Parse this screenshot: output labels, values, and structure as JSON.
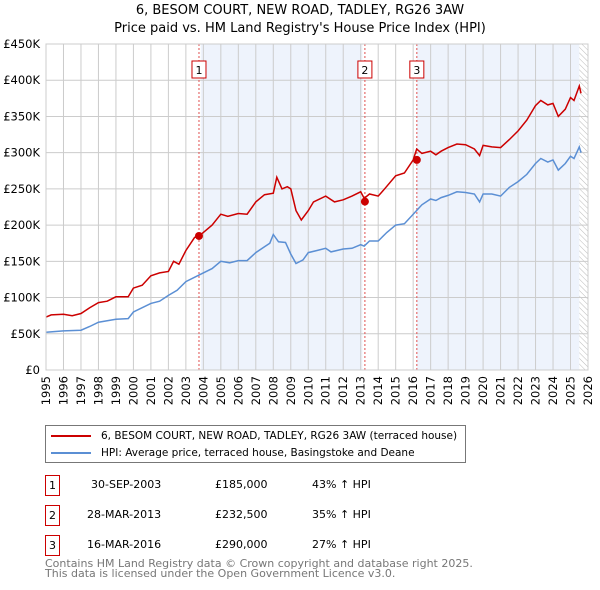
{
  "title": "6, BESOM COURT, NEW ROAD, TADLEY, RG26 3AW",
  "subtitle": "Price paid vs. HM Land Registry's House Price Index (HPI)",
  "chart_data": {
    "type": "line",
    "xlim": [
      1995,
      2026
    ],
    "ylim": [
      0,
      450000
    ],
    "x_ticks": [
      "1995",
      "1996",
      "1997",
      "1998",
      "1999",
      "2000",
      "2001",
      "2002",
      "2003",
      "2004",
      "2005",
      "2006",
      "2007",
      "2008",
      "2009",
      "2010",
      "2011",
      "2012",
      "2013",
      "2014",
      "2015",
      "2016",
      "2017",
      "2018",
      "2019",
      "2020",
      "2021",
      "2022",
      "2023",
      "2024",
      "2025",
      "2026"
    ],
    "y_ticks": [
      {
        "v": 0,
        "l": "£0"
      },
      {
        "v": 50000,
        "l": "£50K"
      },
      {
        "v": 100000,
        "l": "£100K"
      },
      {
        "v": 150000,
        "l": "£150K"
      },
      {
        "v": 200000,
        "l": "£200K"
      },
      {
        "v": 250000,
        "l": "£250K"
      },
      {
        "v": 300000,
        "l": "£300K"
      },
      {
        "v": 350000,
        "l": "£350K"
      },
      {
        "v": 400000,
        "l": "£400K"
      },
      {
        "v": 450000,
        "l": "£450K"
      }
    ],
    "series": [
      {
        "name": "6, BESOM COURT, NEW ROAD, TADLEY, RG26 3AW (terraced house)",
        "color": "#cc0000",
        "x": [
          1995,
          1995.3,
          1996,
          1996.5,
          1997,
          1997.5,
          1998,
          1998.5,
          1999,
          1999.7,
          2000,
          2000.5,
          2001,
          2001.5,
          2002,
          2002.3,
          2002.6,
          2003,
          2003.5,
          2003.75,
          2004,
          2004.5,
          2005,
          2005.4,
          2006,
          2006.5,
          2007,
          2007.5,
          2008,
          2008.2,
          2008.5,
          2008.8,
          2009,
          2009.3,
          2009.6,
          2010,
          2010.3,
          2011,
          2011.5,
          2012,
          2012.5,
          2013,
          2013.2,
          2013.5,
          2014,
          2014.3,
          2015,
          2015.5,
          2016,
          2016.2,
          2016.5,
          2017,
          2017.3,
          2017.6,
          2018,
          2018.5,
          2019,
          2019.5,
          2019.8,
          2020,
          2020.5,
          2021,
          2021.5,
          2022,
          2022.5,
          2023,
          2023.3,
          2023.7,
          2024,
          2024.3,
          2024.7,
          2025,
          2025.2,
          2025.5,
          2025.6
        ],
        "y": [
          73,
          76,
          77,
          75,
          78,
          86,
          93,
          95,
          101,
          101,
          113,
          117,
          130,
          134,
          136,
          150,
          146,
          165,
          183,
          185,
          190,
          200,
          215,
          212,
          216,
          215,
          232,
          242,
          244,
          266,
          250,
          253,
          250,
          220,
          207,
          220,
          232,
          240,
          232,
          235,
          240,
          246,
          237,
          243,
          240,
          248,
          268,
          272,
          290,
          305,
          299,
          302,
          297,
          302,
          307,
          312,
          311,
          305,
          296,
          310,
          308,
          307,
          318,
          330,
          345,
          365,
          372,
          366,
          368,
          350,
          360,
          376,
          372,
          392,
          382
        ]
      },
      {
        "name": "HPI: Average price, terraced house, Basingstoke and Deane",
        "color": "#5b8fd4",
        "x": [
          1995,
          1996,
          1997,
          1997.5,
          1998,
          1999,
          1999.7,
          2000,
          2001,
          2001.5,
          2002,
          2002.5,
          2003,
          2003.75,
          2004.5,
          2005,
          2005.5,
          2006,
          2006.5,
          2007,
          2007.5,
          2007.8,
          2008,
          2008.3,
          2008.7,
          2009,
          2009.3,
          2009.7,
          2010,
          2010.5,
          2011,
          2011.3,
          2012,
          2012.5,
          2013,
          2013.2,
          2013.5,
          2014,
          2014.5,
          2015,
          2015.5,
          2016,
          2016.5,
          2017,
          2017.3,
          2017.6,
          2018,
          2018.5,
          2019,
          2019.5,
          2019.8,
          2020,
          2020.5,
          2021,
          2021.5,
          2022,
          2022.5,
          2023,
          2023.3,
          2023.7,
          2024,
          2024.3,
          2024.7,
          2025,
          2025.2,
          2025.5,
          2025.6
        ],
        "y": [
          52,
          54,
          55,
          60,
          66,
          70,
          71,
          80,
          92,
          95,
          103,
          110,
          122,
          131,
          140,
          150,
          148,
          151,
          151,
          162,
          170,
          175,
          187,
          177,
          176,
          160,
          147,
          152,
          162,
          165,
          168,
          163,
          167,
          168,
          173,
          171,
          178,
          178,
          190,
          200,
          202,
          215,
          228,
          236,
          234,
          238,
          241,
          246,
          245,
          243,
          232,
          243,
          243,
          240,
          252,
          260,
          270,
          285,
          292,
          287,
          290,
          276,
          285,
          295,
          292,
          308,
          300
        ]
      }
    ],
    "y_unit": "thousands GBP",
    "sales": [
      {
        "n": "1",
        "x": 2003.75,
        "y": 185000
      },
      {
        "n": "2",
        "x": 2013.24,
        "y": 232500
      },
      {
        "n": "3",
        "x": 2016.21,
        "y": 290000
      }
    ],
    "legend_placement": "below"
  },
  "legend": [
    "6, BESOM COURT, NEW ROAD, TADLEY, RG26 3AW (terraced house)",
    "HPI: Average price, terraced house, Basingstoke and Deane"
  ],
  "transactions": [
    {
      "n": "1",
      "date": "30-SEP-2003",
      "price": "£185,000",
      "hpi": "43% ↑ HPI"
    },
    {
      "n": "2",
      "date": "28-MAR-2013",
      "price": "£232,500",
      "hpi": "35% ↑ HPI"
    },
    {
      "n": "3",
      "date": "16-MAR-2016",
      "price": "£290,000",
      "hpi": "27% ↑ HPI"
    }
  ],
  "footer": [
    "Contains HM Land Registry data © Crown copyright and database right 2025.",
    "This data is licensed under the Open Government Licence v3.0."
  ]
}
